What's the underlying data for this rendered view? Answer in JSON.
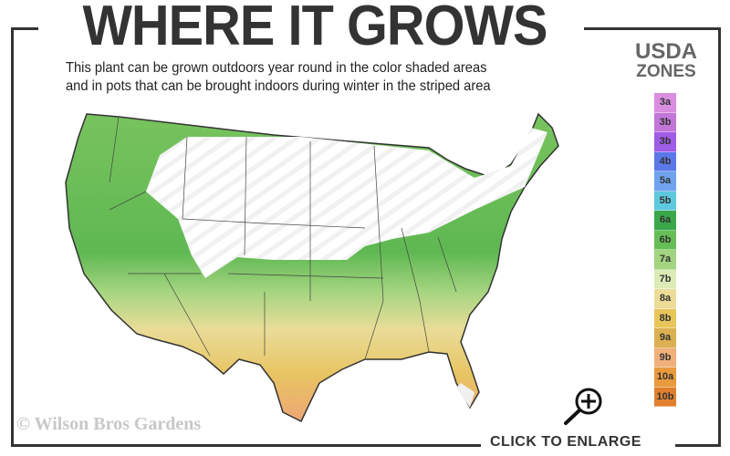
{
  "header": {
    "title": "WHERE IT GROWS",
    "subtitle_line1": "This plant can be grown outdoors year round in the color shaded areas",
    "subtitle_line2": "and in pots that can be brought indoors during winter in the striped area"
  },
  "legend": {
    "title_line1": "USDA",
    "title_line2": "ZONES",
    "zones": [
      {
        "label": "3a",
        "color": "#d98ee0"
      },
      {
        "label": "3b",
        "color": "#c277d8"
      },
      {
        "label": "3b",
        "color": "#9f5ce6"
      },
      {
        "label": "4b",
        "color": "#5a78e8"
      },
      {
        "label": "5a",
        "color": "#6fa3ee"
      },
      {
        "label": "5b",
        "color": "#5ec8df"
      },
      {
        "label": "6a",
        "color": "#3aa84a"
      },
      {
        "label": "6b",
        "color": "#66be57"
      },
      {
        "label": "7a",
        "color": "#a3d480"
      },
      {
        "label": "7b",
        "color": "#dcebb6"
      },
      {
        "label": "8a",
        "color": "#ecdc98"
      },
      {
        "label": "8b",
        "color": "#e8c65a"
      },
      {
        "label": "9a",
        "color": "#dcb052"
      },
      {
        "label": "9b",
        "color": "#f0b07a"
      },
      {
        "label": "10a",
        "color": "#e99a3e"
      },
      {
        "label": "10b",
        "color": "#e0802e"
      }
    ]
  },
  "watermark": "© Wilson Bros Gardens",
  "enlarge": {
    "label": "CLICK TO ENLARGE",
    "icon": "zoom-in-icon"
  }
}
